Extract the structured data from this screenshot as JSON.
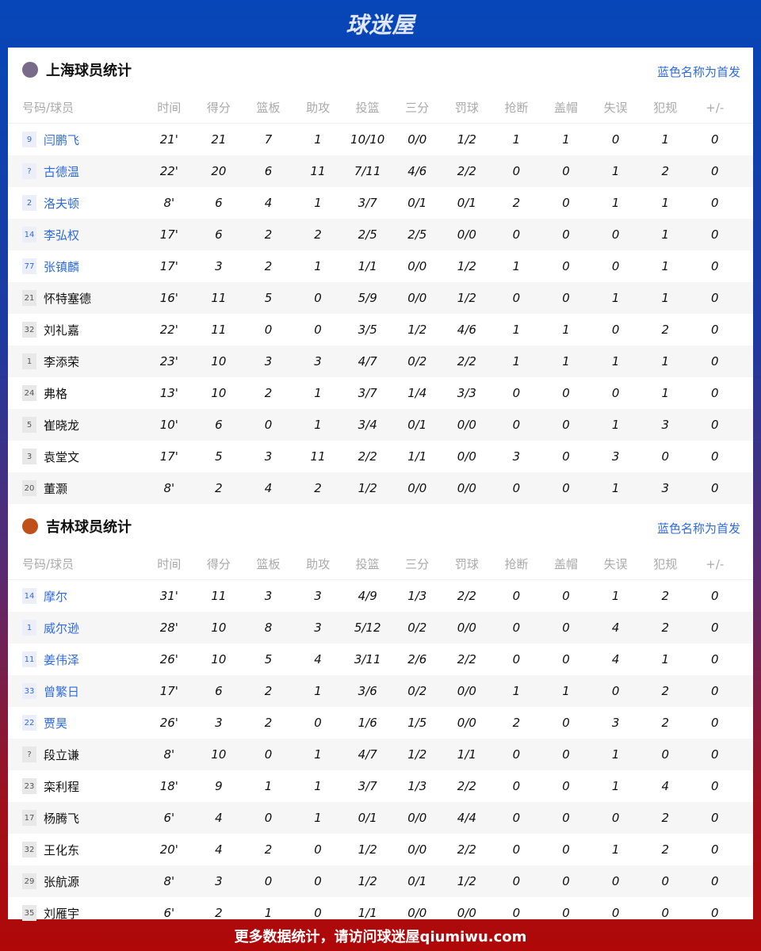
{
  "brand": "球迷屋",
  "columns": [
    "号码/球员",
    "时间",
    "得分",
    "篮板",
    "助攻",
    "投篮",
    "三分",
    "罚球",
    "抢断",
    "盖帽",
    "失误",
    "犯规",
    "+/-"
  ],
  "teams": [
    {
      "title": "上海球员统计",
      "note": "蓝色名称为首发",
      "logo_color": "#7a6a8a",
      "players": [
        [
          "9",
          "闫鹏飞",
          1,
          "21'",
          "21",
          "7",
          "1",
          "10/10",
          "0/0",
          "1/2",
          "1",
          "1",
          "0",
          "1",
          "0"
        ],
        [
          "?",
          "古德温",
          1,
          "22'",
          "20",
          "6",
          "11",
          "7/11",
          "4/6",
          "2/2",
          "0",
          "0",
          "1",
          "2",
          "0"
        ],
        [
          "2",
          "洛夫顿",
          1,
          "8'",
          "6",
          "4",
          "1",
          "3/7",
          "0/1",
          "0/1",
          "2",
          "0",
          "1",
          "1",
          "0"
        ],
        [
          "14",
          "李弘权",
          1,
          "17'",
          "6",
          "2",
          "2",
          "2/5",
          "2/5",
          "0/0",
          "0",
          "0",
          "0",
          "1",
          "0"
        ],
        [
          "77",
          "张镇麟",
          1,
          "17'",
          "3",
          "2",
          "1",
          "1/1",
          "0/0",
          "1/2",
          "1",
          "0",
          "0",
          "1",
          "0"
        ],
        [
          "21",
          "怀特塞德",
          0,
          "16'",
          "11",
          "5",
          "0",
          "5/9",
          "0/0",
          "1/2",
          "0",
          "0",
          "1",
          "1",
          "0"
        ],
        [
          "32",
          "刘礼嘉",
          0,
          "22'",
          "11",
          "0",
          "0",
          "3/5",
          "1/2",
          "4/6",
          "1",
          "1",
          "0",
          "2",
          "0"
        ],
        [
          "1",
          "李添荣",
          0,
          "23'",
          "10",
          "3",
          "3",
          "4/7",
          "0/2",
          "2/2",
          "1",
          "1",
          "1",
          "1",
          "0"
        ],
        [
          "24",
          "弗格",
          0,
          "13'",
          "10",
          "2",
          "1",
          "3/7",
          "1/4",
          "3/3",
          "0",
          "0",
          "0",
          "1",
          "0"
        ],
        [
          "5",
          "崔晓龙",
          0,
          "10'",
          "6",
          "0",
          "1",
          "3/4",
          "0/1",
          "0/0",
          "0",
          "0",
          "1",
          "3",
          "0"
        ],
        [
          "3",
          "袁堂文",
          0,
          "17'",
          "5",
          "3",
          "11",
          "2/2",
          "1/1",
          "0/0",
          "3",
          "0",
          "3",
          "0",
          "0"
        ],
        [
          "20",
          "董灏",
          0,
          "8'",
          "2",
          "4",
          "2",
          "1/2",
          "0/0",
          "0/0",
          "0",
          "0",
          "1",
          "3",
          "0"
        ]
      ]
    },
    {
      "title": "吉林球员统计",
      "note": "蓝色名称为首发",
      "logo_color": "#c0501a",
      "players": [
        [
          "14",
          "摩尔",
          1,
          "31'",
          "11",
          "3",
          "3",
          "4/9",
          "1/3",
          "2/2",
          "0",
          "0",
          "1",
          "2",
          "0"
        ],
        [
          "1",
          "威尔逊",
          1,
          "28'",
          "10",
          "8",
          "3",
          "5/12",
          "0/2",
          "0/0",
          "0",
          "0",
          "4",
          "2",
          "0"
        ],
        [
          "11",
          "姜伟泽",
          1,
          "26'",
          "10",
          "5",
          "4",
          "3/11",
          "2/6",
          "2/2",
          "0",
          "0",
          "4",
          "1",
          "0"
        ],
        [
          "33",
          "曾繁日",
          1,
          "17'",
          "6",
          "2",
          "1",
          "3/6",
          "0/2",
          "0/0",
          "1",
          "1",
          "0",
          "2",
          "0"
        ],
        [
          "22",
          "贾昊",
          1,
          "26'",
          "3",
          "2",
          "0",
          "1/6",
          "1/5",
          "0/0",
          "2",
          "0",
          "3",
          "2",
          "0"
        ],
        [
          "?",
          "段立谦",
          0,
          "8'",
          "10",
          "0",
          "1",
          "4/7",
          "1/2",
          "1/1",
          "0",
          "0",
          "1",
          "0",
          "0"
        ],
        [
          "23",
          "栾利程",
          0,
          "18'",
          "9",
          "1",
          "1",
          "3/7",
          "1/3",
          "2/2",
          "0",
          "0",
          "1",
          "4",
          "0"
        ],
        [
          "17",
          "杨腾飞",
          0,
          "6'",
          "4",
          "0",
          "1",
          "0/1",
          "0/0",
          "4/4",
          "0",
          "0",
          "0",
          "2",
          "0"
        ],
        [
          "32",
          "王化东",
          0,
          "20'",
          "4",
          "2",
          "0",
          "1/2",
          "0/0",
          "2/2",
          "0",
          "0",
          "1",
          "2",
          "0"
        ],
        [
          "29",
          "张航源",
          0,
          "8'",
          "3",
          "0",
          "0",
          "1/2",
          "0/1",
          "1/2",
          "0",
          "0",
          "0",
          "0",
          "0"
        ],
        [
          "35",
          "刘雁宇",
          0,
          "6'",
          "2",
          "1",
          "0",
          "1/1",
          "0/0",
          "0/0",
          "0",
          "0",
          "0",
          "0",
          "0"
        ]
      ]
    }
  ],
  "footer": "更多数据统计，请访问球迷屋qiumiwu.com"
}
